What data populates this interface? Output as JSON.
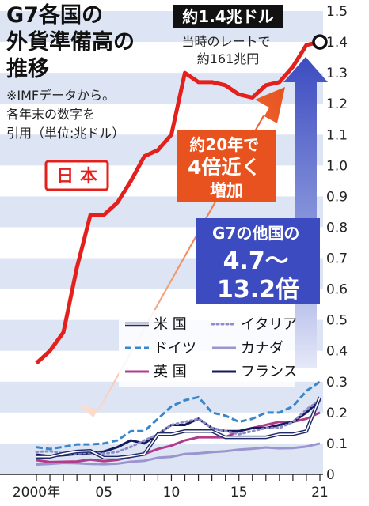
{
  "header": {
    "title_lines": [
      "G7各国の",
      "外貨準備高の",
      "推移"
    ],
    "note_lines": [
      "※IMFデータから。",
      "各年末の数字を",
      "引用（単位:兆ドル）"
    ]
  },
  "annotations": {
    "peak_label": "約1.4兆ドル",
    "peak_sub_lines": [
      "当時のレートで",
      "約161兆円"
    ],
    "japan_label": "日 本",
    "growth_lines": [
      "約20年で",
      "4倍近く",
      "増加"
    ],
    "others_lines": [
      "G7の他国の",
      "4.7～",
      "13.2倍"
    ]
  },
  "colors": {
    "japan": "#e3201b",
    "usa": "#1f2a6b",
    "germany": "#3a86c8",
    "uk": "#b03c8c",
    "italy": "#8c8cc8",
    "canada": "#9a94cf",
    "france": "#161a5c",
    "stripe": "#dde4f3",
    "arrow_blue": "#3c4cc0",
    "arrow_orange": "#e8521e"
  },
  "legend": [
    {
      "key": "usa",
      "label": "米 国",
      "style": "double"
    },
    {
      "key": "italy",
      "label": "イタリア",
      "style": "dotted"
    },
    {
      "key": "germany",
      "label": "ドイツ",
      "style": "dashed"
    },
    {
      "key": "canada",
      "label": "カナダ",
      "style": "solid"
    },
    {
      "key": "uk",
      "label": "英 国",
      "style": "solid"
    },
    {
      "key": "france",
      "label": "フランス",
      "style": "solid"
    }
  ],
  "chart_data": {
    "type": "line",
    "x_tick_labels": [
      "2000年",
      "05",
      "10",
      "15",
      "21"
    ],
    "x_tick_values": [
      2000,
      2005,
      2010,
      2015,
      2021
    ],
    "y_tick_labels": [
      "0",
      "0.1",
      "0.2",
      "0.3",
      "0.4",
      "0.5",
      "0.6",
      "0.7",
      "0.8",
      "0.9",
      "1.0",
      "1.1",
      "1.2",
      "1.3",
      "1.4",
      "1.5"
    ],
    "xlim": [
      2000,
      2021
    ],
    "ylim": [
      0,
      1.5
    ],
    "x": [
      2000,
      2001,
      2002,
      2003,
      2004,
      2005,
      2006,
      2007,
      2008,
      2009,
      2010,
      2011,
      2012,
      2013,
      2014,
      2015,
      2016,
      2017,
      2018,
      2019,
      2020,
      2021
    ],
    "series": [
      {
        "name": "日 本",
        "key": "japan",
        "values": [
          0.36,
          0.4,
          0.46,
          0.67,
          0.84,
          0.84,
          0.88,
          0.95,
          1.03,
          1.05,
          1.1,
          1.3,
          1.27,
          1.27,
          1.26,
          1.23,
          1.22,
          1.26,
          1.27,
          1.32,
          1.39,
          1.4
        ]
      },
      {
        "name": "米 国",
        "key": "usa",
        "values": [
          0.057,
          0.057,
          0.067,
          0.074,
          0.076,
          0.054,
          0.054,
          0.059,
          0.066,
          0.13,
          0.13,
          0.14,
          0.14,
          0.14,
          0.12,
          0.12,
          0.12,
          0.12,
          0.13,
          0.13,
          0.14,
          0.25
        ]
      },
      {
        "name": "ドイツ",
        "key": "germany",
        "values": [
          0.088,
          0.082,
          0.089,
          0.097,
          0.097,
          0.1,
          0.11,
          0.14,
          0.14,
          0.18,
          0.22,
          0.24,
          0.25,
          0.2,
          0.19,
          0.17,
          0.18,
          0.2,
          0.2,
          0.22,
          0.27,
          0.3
        ]
      },
      {
        "name": "英 国",
        "key": "uk",
        "values": [
          0.046,
          0.04,
          0.041,
          0.042,
          0.048,
          0.043,
          0.047,
          0.057,
          0.066,
          0.082,
          0.093,
          0.11,
          0.12,
          0.12,
          0.12,
          0.14,
          0.15,
          0.16,
          0.17,
          0.17,
          0.18,
          0.2
        ]
      },
      {
        "name": "イタリア",
        "key": "italy",
        "values": [
          0.073,
          0.075,
          0.068,
          0.068,
          0.071,
          0.067,
          0.073,
          0.089,
          0.11,
          0.13,
          0.16,
          0.17,
          0.18,
          0.15,
          0.14,
          0.13,
          0.14,
          0.15,
          0.15,
          0.17,
          0.21,
          0.24
        ]
      },
      {
        "name": "カナダ",
        "key": "canada",
        "values": [
          0.032,
          0.034,
          0.037,
          0.036,
          0.034,
          0.033,
          0.035,
          0.041,
          0.044,
          0.054,
          0.057,
          0.066,
          0.068,
          0.072,
          0.075,
          0.08,
          0.083,
          0.087,
          0.084,
          0.085,
          0.09,
          0.1
        ]
      },
      {
        "name": "フランス",
        "key": "france",
        "values": [
          0.064,
          0.059,
          0.062,
          0.066,
          0.069,
          0.074,
          0.088,
          0.11,
          0.1,
          0.13,
          0.16,
          0.16,
          0.18,
          0.15,
          0.14,
          0.14,
          0.15,
          0.15,
          0.16,
          0.17,
          0.2,
          0.24
        ]
      }
    ]
  }
}
